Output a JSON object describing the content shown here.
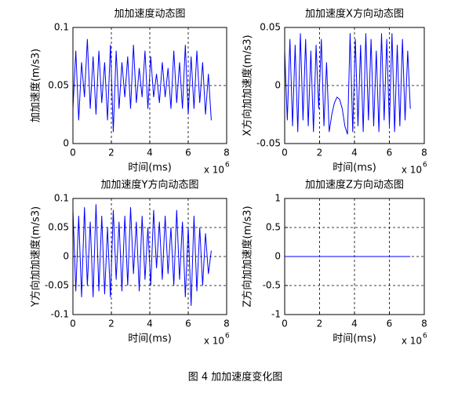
{
  "chart_data": [
    {
      "type": "line",
      "title": "加加速度动态图",
      "xlabel": "时间(ms)",
      "ylabel": "加加速度(m/s3)",
      "x_multiplier": "x 10",
      "x_multiplier_exponent": "6",
      "xlim": [
        0,
        8
      ],
      "xticks": [
        0,
        2,
        4,
        6,
        8
      ],
      "ylim": [
        0,
        0.1
      ],
      "yticks": [
        0,
        0.05,
        0.1
      ],
      "grid": true,
      "x": [
        0,
        0.15,
        0.3,
        0.45,
        0.6,
        0.75,
        0.9,
        1.05,
        1.2,
        1.35,
        1.5,
        1.65,
        1.8,
        1.95,
        2.1,
        2.25,
        2.4,
        2.55,
        2.7,
        2.85,
        3,
        3.15,
        3.3,
        3.45,
        3.6,
        3.75,
        3.9,
        4.05,
        4.2,
        4.35,
        4.5,
        4.65,
        4.8,
        4.95,
        5.1,
        5.25,
        5.4,
        5.55,
        5.7,
        5.85,
        6,
        6.15,
        6.3,
        6.45,
        6.6,
        6.75,
        6.9,
        7.05,
        7.2
      ],
      "series": [
        {
          "color": "#0000ff",
          "values": [
            0.03,
            0.08,
            0.02,
            0.07,
            0.04,
            0.09,
            0.03,
            0.075,
            0.025,
            0.08,
            0.035,
            0.07,
            0.02,
            0.085,
            0.01,
            0.08,
            0.03,
            0.07,
            0.04,
            0.075,
            0.03,
            0.085,
            0.035,
            0.065,
            0.04,
            0.08,
            0.03,
            0.075,
            0.04,
            0.06,
            0.035,
            0.07,
            0.04,
            0.065,
            0.03,
            0.08,
            0.035,
            0.07,
            0.03,
            0.085,
            0.025,
            0.075,
            0.03,
            0.08,
            0.035,
            0.07,
            0.025,
            0.06,
            0.02
          ]
        }
      ]
    },
    {
      "type": "line",
      "title": "加加速度X方向动态图",
      "xlabel": "时间(ms)",
      "ylabel": "X方向加加速度(m/s3)",
      "x_multiplier": "x 10",
      "x_multiplier_exponent": "6",
      "xlim": [
        0,
        8
      ],
      "xticks": [
        0,
        2,
        4,
        6,
        8
      ],
      "ylim": [
        -0.05,
        0.05
      ],
      "yticks": [
        -0.05,
        0,
        0.05
      ],
      "grid": true,
      "x": [
        0,
        0.15,
        0.3,
        0.45,
        0.6,
        0.75,
        0.9,
        1.05,
        1.2,
        1.35,
        1.5,
        1.65,
        1.8,
        1.95,
        2.1,
        2.25,
        2.4,
        2.55,
        2.7,
        2.85,
        3,
        3.15,
        3.3,
        3.45,
        3.6,
        3.75,
        3.9,
        4.05,
        4.2,
        4.35,
        4.5,
        4.65,
        4.8,
        4.95,
        5.1,
        5.25,
        5.4,
        5.55,
        5.7,
        5.85,
        6,
        6.15,
        6.3,
        6.45,
        6.6,
        6.75,
        6.9,
        7.05,
        7.2
      ],
      "series": [
        {
          "color": "#0000ff",
          "values": [
            0.03,
            -0.03,
            0.04,
            -0.035,
            0.035,
            -0.04,
            0.045,
            -0.03,
            0.04,
            -0.035,
            0.03,
            -0.04,
            0.035,
            -0.02,
            0.04,
            -0.035,
            0.02,
            -0.04,
            -0.025,
            -0.015,
            -0.01,
            -0.012,
            -0.02,
            -0.035,
            -0.042,
            0.045,
            -0.04,
            0.04,
            -0.035,
            0.035,
            -0.04,
            0.045,
            -0.03,
            0.04,
            -0.035,
            0.03,
            -0.04,
            0.045,
            -0.03,
            0.04,
            -0.035,
            0.045,
            -0.04,
            0.035,
            -0.035,
            0.04,
            -0.03,
            0.03,
            -0.02
          ]
        }
      ]
    },
    {
      "type": "line",
      "title": "加加速度Y方向动态图",
      "xlabel": "时间(ms)",
      "ylabel": "Y方向加加速度(m/s3)",
      "x_multiplier": "x 10",
      "x_multiplier_exponent": "6",
      "xlim": [
        0,
        8
      ],
      "xticks": [
        0,
        2,
        4,
        6,
        8
      ],
      "ylim": [
        -0.1,
        0.1
      ],
      "yticks": [
        -0.1,
        -0.05,
        0,
        0.05,
        0.1
      ],
      "grid": true,
      "x": [
        0,
        0.15,
        0.3,
        0.45,
        0.6,
        0.75,
        0.9,
        1.05,
        1.2,
        1.35,
        1.5,
        1.65,
        1.8,
        1.95,
        2.1,
        2.25,
        2.4,
        2.55,
        2.7,
        2.85,
        3,
        3.15,
        3.3,
        3.45,
        3.6,
        3.75,
        3.9,
        4.05,
        4.2,
        4.35,
        4.5,
        4.65,
        4.8,
        4.95,
        5.1,
        5.25,
        5.4,
        5.55,
        5.7,
        5.85,
        6,
        6.15,
        6.3,
        6.45,
        6.6,
        6.75,
        6.9,
        7.05,
        7.2
      ],
      "series": [
        {
          "color": "#0000ff",
          "values": [
            0.08,
            -0.06,
            0.07,
            -0.07,
            0.085,
            -0.05,
            0.06,
            -0.07,
            0.09,
            -0.06,
            0.07,
            -0.065,
            0.05,
            -0.07,
            0.08,
            -0.04,
            0.06,
            -0.06,
            0.07,
            -0.05,
            0.085,
            -0.03,
            0.06,
            -0.06,
            0.07,
            -0.04,
            0.05,
            -0.05,
            0.08,
            -0.02,
            0.06,
            -0.04,
            0.07,
            -0.03,
            0.05,
            -0.05,
            0.08,
            -0.04,
            0.06,
            -0.07,
            0.05,
            -0.085,
            0.07,
            -0.06,
            0.05,
            -0.05,
            0.04,
            -0.03,
            0.01
          ]
        }
      ]
    },
    {
      "type": "line",
      "title": "加加速度Z方向动态图",
      "xlabel": "时间(ms)",
      "ylabel": "Z方向加加速度(m/s3)",
      "x_multiplier": "x 10",
      "x_multiplier_exponent": "6",
      "xlim": [
        0,
        8
      ],
      "xticks": [
        0,
        2,
        4,
        6,
        8
      ],
      "ylim": [
        -1,
        1
      ],
      "yticks": [
        -1,
        -0.5,
        0,
        0.5,
        1
      ],
      "grid": true,
      "x": [
        0,
        7.2
      ],
      "series": [
        {
          "color": "#0000ff",
          "values": [
            0,
            0
          ]
        }
      ]
    }
  ],
  "caption": "图 4  加加速度变化图"
}
